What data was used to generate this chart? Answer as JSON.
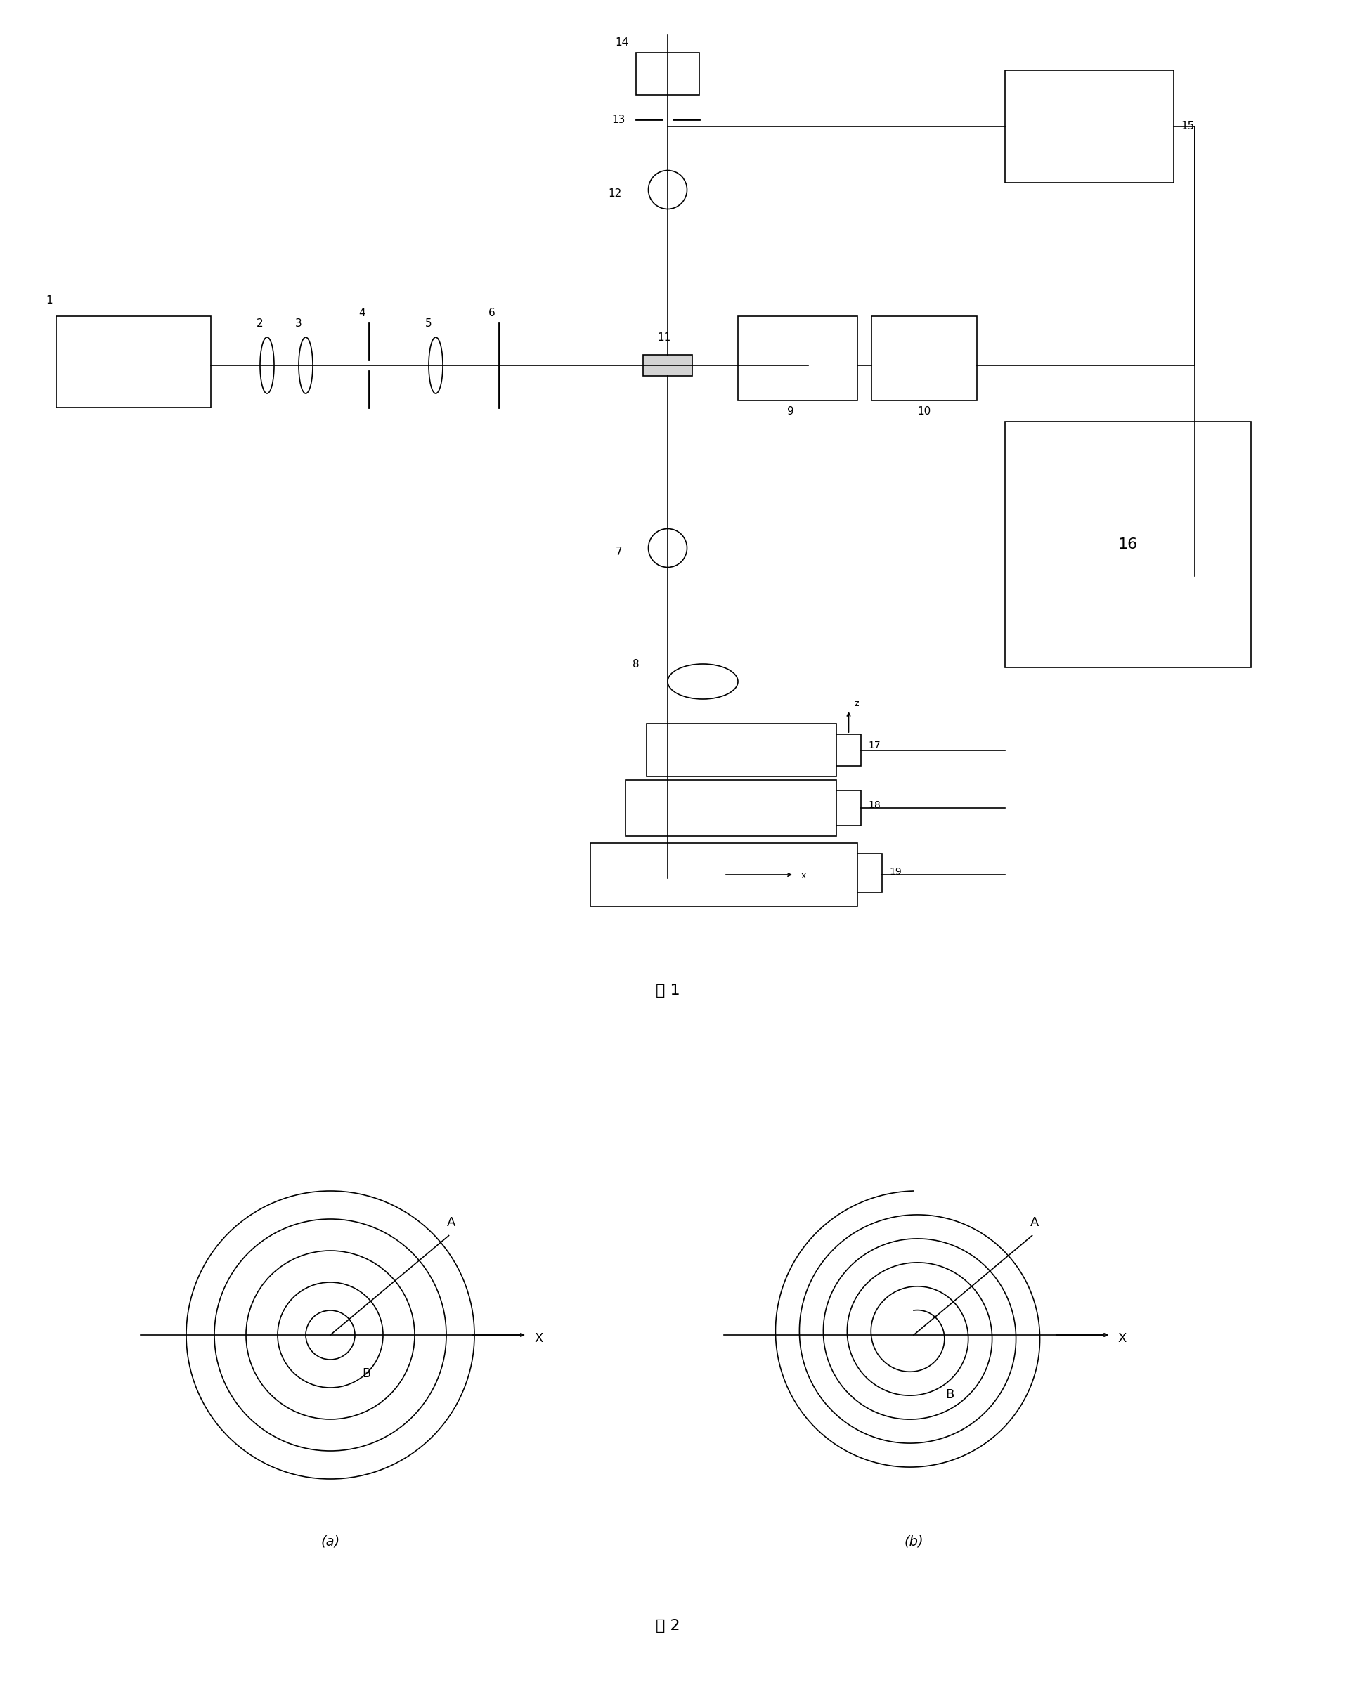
{
  "bg_color": "#ffffff",
  "fig_width": 19.18,
  "fig_height": 24.11,
  "fig1_caption": "图 1",
  "fig2_caption": "图 2",
  "subfig_a_caption": "(a)",
  "subfig_b_caption": "(b)"
}
